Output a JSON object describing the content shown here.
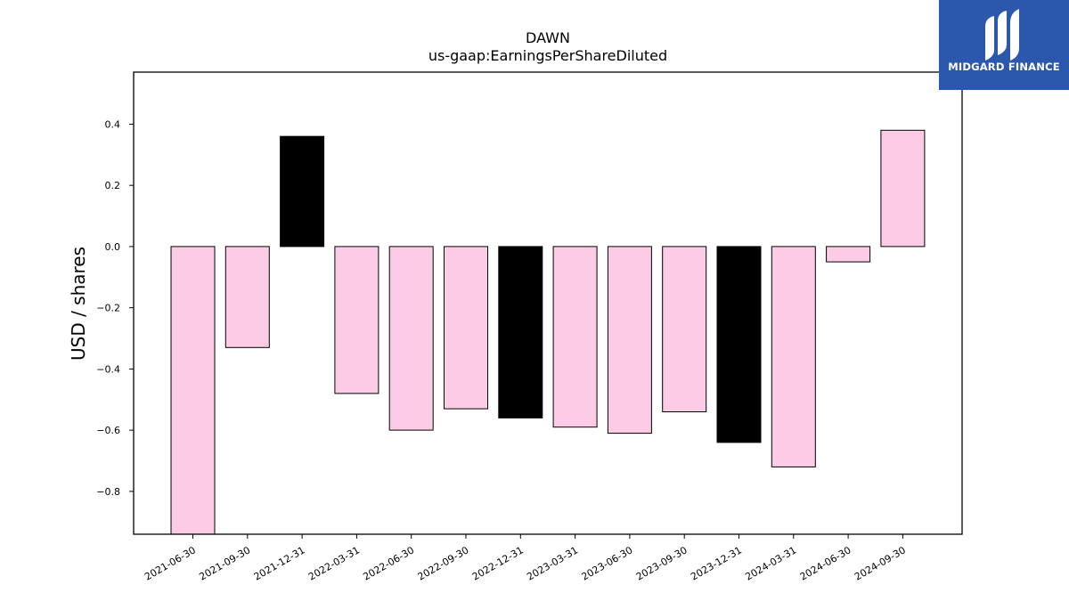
{
  "chart_data": {
    "type": "bar",
    "title": "DAWN",
    "subtitle": "us-gaap:EarningsPerShareDiluted",
    "ylabel": "USD / shares",
    "xlabel": "",
    "categories": [
      "2021-06-30",
      "2021-09-30",
      "2021-12-31",
      "2022-03-31",
      "2022-06-30",
      "2022-09-30",
      "2022-12-31",
      "2023-03-31",
      "2023-06-30",
      "2023-09-30",
      "2023-12-31",
      "2024-03-31",
      "2024-06-30",
      "2024-09-30"
    ],
    "values": [
      -0.94,
      -0.33,
      0.36,
      -0.48,
      -0.6,
      -0.53,
      -0.56,
      -0.59,
      -0.61,
      -0.54,
      -0.64,
      -0.72,
      -0.05,
      0.38
    ],
    "highlight": [
      false,
      false,
      true,
      false,
      false,
      false,
      true,
      false,
      false,
      false,
      true,
      false,
      false,
      false
    ],
    "ylim": [
      -0.94,
      0.57
    ],
    "yticks": [
      0.4,
      0.2,
      0.0,
      -0.2,
      -0.4,
      -0.6,
      -0.8
    ],
    "ytick_labels": [
      "0.4",
      "0.2",
      "0.0",
      "−0.2",
      "−0.4",
      "−0.6",
      "−0.8"
    ],
    "colors": {
      "bar": "#fccbe6",
      "highlight": "#000000",
      "edge": "#000000"
    },
    "grid": false,
    "legend": "none"
  },
  "logo": {
    "text": "MIDGARD FINANCE",
    "background": "#2b57ad"
  }
}
